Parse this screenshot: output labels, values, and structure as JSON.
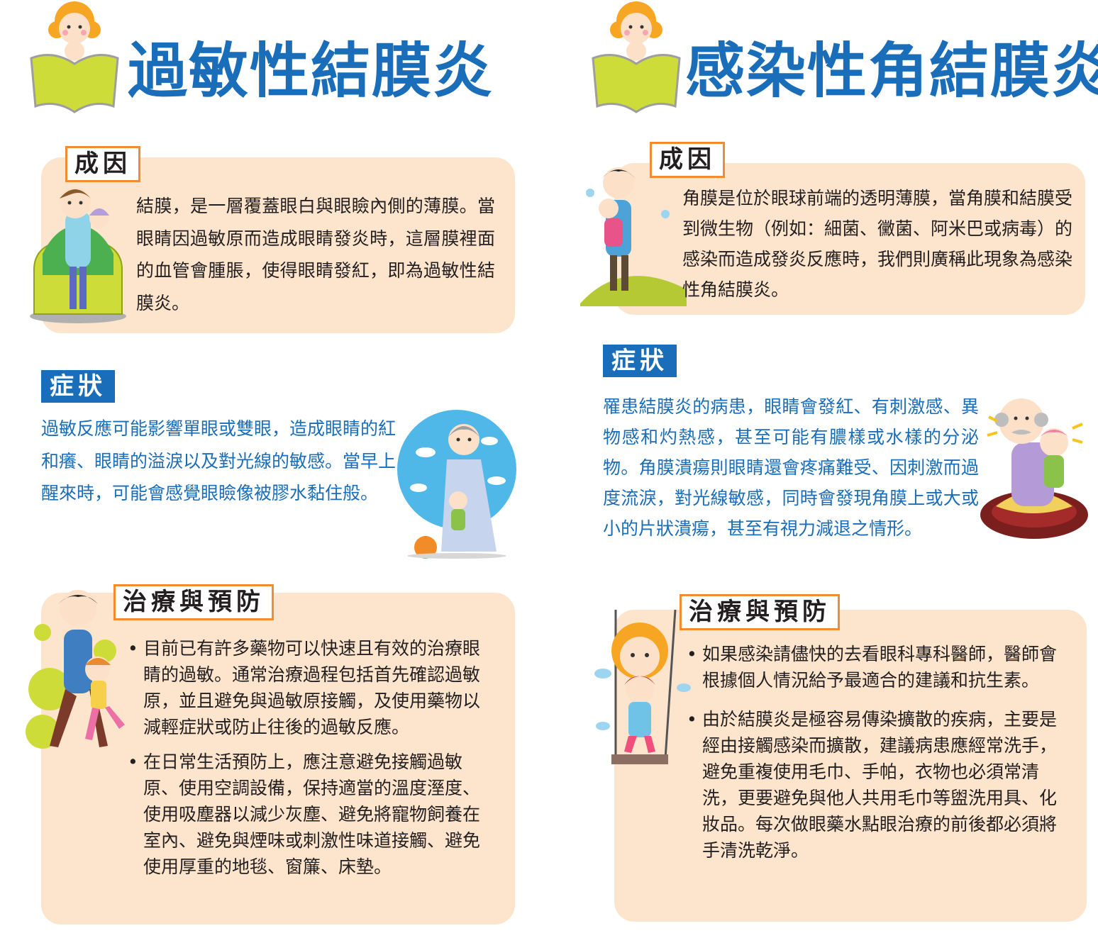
{
  "left": {
    "title": "過敏性結膜炎",
    "cause": {
      "label": "成因",
      "text": "結膜，是一層覆蓋眼白與眼瞼內側的薄膜。當眼睛因過敏原而造成眼睛發炎時，這層膜裡面的血管會腫脹，使得眼睛發紅，即為過敏性結膜炎。"
    },
    "symptoms": {
      "label": "症狀",
      "text": "過敏反應可能影響單眼或雙眼，造成眼睛的紅和癢、眼睛的溢淚以及對光線的敏感。當早上醒來時，可能會感覺眼瞼像被膠水黏住般。"
    },
    "treatment": {
      "label": "治療與預防",
      "items": [
        "目前已有許多藥物可以快速且有效的治療眼睛的過敏。通常治療過程包括首先確認過敏原，並且避免與過敏原接觸，及使用藥物以減輕症狀或防止往後的過敏反應。",
        "在日常生活預防上，應注意避免接觸過敏原、使用空調設備，保持適當的溫度溼度、使用吸塵器以減少灰塵、避免將寵物飼養在室內、避免與煙味或刺激性味道接觸、避免使用厚重的地毯、窗簾、床墊。"
      ]
    }
  },
  "right": {
    "title": "感染性角結膜炎",
    "cause": {
      "label": "成因",
      "text": "角膜是位於眼球前端的透明薄膜，當角膜和結膜受到微生物（例如：細菌、黴菌、阿米巴或病毒）的感染而造成發炎反應時，我們則廣稱此現象為感染性角結膜炎。"
    },
    "symptoms": {
      "label": "症狀",
      "text": "罹患結膜炎的病患，眼睛會發紅、有刺激感、異物感和灼熱感，甚至可能有膿樣或水樣的分泌物。角膜潰瘍則眼睛還會疼痛難受、因刺激而過度流淚，對光線敏感，同時會發現角膜上或大或小的片狀潰瘍，甚至有視力減退之情形。"
    },
    "treatment": {
      "label": "治療與預防",
      "items": [
        "如果感染請儘快的去看眼科專科醫師，醫師會根據個人情況給予最適合的建議和抗生素。",
        "由於結膜炎是極容易傳染擴散的疾病，主要是經由接觸感染而擴散，建議病患應經常洗手，避免重複使用毛巾、手帕，衣物也必須常清洗，更要避免與他人共用毛巾等盥洗用具、化妝品。每次做眼藥水點眼治療的前後都必須將手清洗乾淨。"
      ]
    }
  },
  "colors": {
    "title_blue": "#1a6db8",
    "card_peach": "#fde4cc",
    "tag_orange": "#f08c32",
    "book_green": "#cddc39"
  },
  "icons": [
    "reading-girl-icon",
    "family-illustration-icon",
    "grandma-child-icon",
    "grandpa-child-icon",
    "swing-children-icon"
  ]
}
